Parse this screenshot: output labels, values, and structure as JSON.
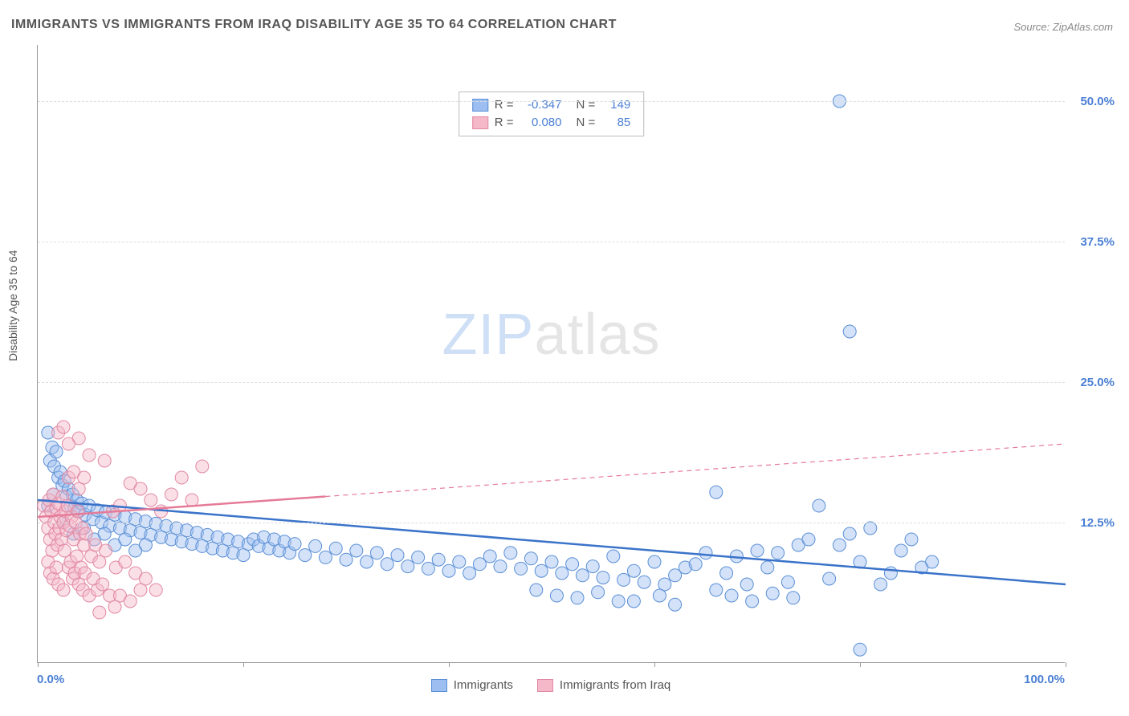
{
  "title": "IMMIGRANTS VS IMMIGRANTS FROM IRAQ DISABILITY AGE 35 TO 64 CORRELATION CHART",
  "source": "Source: ZipAtlas.com",
  "ylabel": "Disability Age 35 to 64",
  "watermark": {
    "part1": "ZIP",
    "part2": "atlas"
  },
  "chart": {
    "type": "scatter",
    "background_color": "#ffffff",
    "grid_color": "#dddddd",
    "axis_color": "#999999",
    "xlim": [
      0,
      100
    ],
    "ylim": [
      0,
      55
    ],
    "xtick_positions": [
      0,
      20,
      40,
      60,
      80,
      100
    ],
    "xtick_labels_shown": {
      "0": "0.0%",
      "100": "100.0%"
    },
    "ytick_positions": [
      12.5,
      25.0,
      37.5,
      50.0
    ],
    "ytick_labels": [
      "12.5%",
      "25.0%",
      "37.5%",
      "50.0%"
    ],
    "ytick_color": "#4a7fd4",
    "xtick_color": "#4a7fd4",
    "marker_radius": 8,
    "marker_opacity": 0.45,
    "trend_line_width": 2.5,
    "trend_dash_width": 1.2
  },
  "series": [
    {
      "name": "Immigrants",
      "fill_color": "#9dbef0",
      "stroke_color": "#5b8fd6",
      "line_color": "#3a73c9",
      "stats": {
        "R": "-0.347",
        "N": "149"
      },
      "trend": {
        "x1": 0,
        "y1": 14.5,
        "x2": 100,
        "y2": 7.0,
        "solid_until_x": 100
      },
      "points": [
        [
          1.0,
          20.5
        ],
        [
          1.2,
          18.0
        ],
        [
          1.4,
          19.2
        ],
        [
          1.6,
          17.5
        ],
        [
          1.8,
          18.8
        ],
        [
          2.0,
          16.5
        ],
        [
          1.0,
          14.0
        ],
        [
          1.5,
          15.0
        ],
        [
          2.2,
          17.0
        ],
        [
          2.4,
          15.8
        ],
        [
          2.6,
          16.2
        ],
        [
          2.8,
          14.8
        ],
        [
          3.0,
          15.5
        ],
        [
          3.2,
          14.0
        ],
        [
          3.4,
          15.0
        ],
        [
          3.6,
          13.8
        ],
        [
          3.8,
          14.5
        ],
        [
          4.0,
          13.5
        ],
        [
          4.3,
          14.2
        ],
        [
          4.6,
          13.2
        ],
        [
          5.0,
          14.0
        ],
        [
          5.4,
          12.8
        ],
        [
          5.8,
          13.6
        ],
        [
          6.2,
          12.5
        ],
        [
          6.6,
          13.4
        ],
        [
          7.0,
          12.2
        ],
        [
          7.5,
          13.2
        ],
        [
          8.0,
          12.0
        ],
        [
          8.5,
          13.0
        ],
        [
          9.0,
          11.8
        ],
        [
          9.5,
          12.8
        ],
        [
          10.0,
          11.6
        ],
        [
          10.5,
          12.6
        ],
        [
          11.0,
          11.4
        ],
        [
          11.5,
          12.4
        ],
        [
          12.0,
          11.2
        ],
        [
          12.5,
          12.2
        ],
        [
          13.0,
          11.0
        ],
        [
          13.5,
          12.0
        ],
        [
          14.0,
          10.8
        ],
        [
          14.5,
          11.8
        ],
        [
          15.0,
          10.6
        ],
        [
          15.5,
          11.6
        ],
        [
          16.0,
          10.4
        ],
        [
          16.5,
          11.4
        ],
        [
          17.0,
          10.2
        ],
        [
          17.5,
          11.2
        ],
        [
          18.0,
          10.0
        ],
        [
          18.5,
          11.0
        ],
        [
          19.0,
          9.8
        ],
        [
          19.5,
          10.8
        ],
        [
          20.0,
          9.6
        ],
        [
          20.5,
          10.6
        ],
        [
          21.0,
          11.0
        ],
        [
          21.5,
          10.4
        ],
        [
          22.0,
          11.2
        ],
        [
          22.5,
          10.2
        ],
        [
          23.0,
          11.0
        ],
        [
          23.5,
          10.0
        ],
        [
          24.0,
          10.8
        ],
        [
          24.5,
          9.8
        ],
        [
          25.0,
          10.6
        ],
        [
          26.0,
          9.6
        ],
        [
          27.0,
          10.4
        ],
        [
          28.0,
          9.4
        ],
        [
          29.0,
          10.2
        ],
        [
          30.0,
          9.2
        ],
        [
          31.0,
          10.0
        ],
        [
          32.0,
          9.0
        ],
        [
          33.0,
          9.8
        ],
        [
          34.0,
          8.8
        ],
        [
          35.0,
          9.6
        ],
        [
          36.0,
          8.6
        ],
        [
          37.0,
          9.4
        ],
        [
          38.0,
          8.4
        ],
        [
          39.0,
          9.2
        ],
        [
          40.0,
          8.2
        ],
        [
          41.0,
          9.0
        ],
        [
          42.0,
          8.0
        ],
        [
          43.0,
          8.8
        ],
        [
          44.0,
          9.5
        ],
        [
          45.0,
          8.6
        ],
        [
          46.0,
          9.8
        ],
        [
          47.0,
          8.4
        ],
        [
          48.0,
          9.3
        ],
        [
          49.0,
          8.2
        ],
        [
          50.0,
          9.0
        ],
        [
          51.0,
          8.0
        ],
        [
          52.0,
          8.8
        ],
        [
          53.0,
          7.8
        ],
        [
          54.0,
          8.6
        ],
        [
          55.0,
          7.6
        ],
        [
          56.0,
          9.5
        ],
        [
          57.0,
          7.4
        ],
        [
          58.0,
          8.2
        ],
        [
          59.0,
          7.2
        ],
        [
          60.0,
          9.0
        ],
        [
          61.0,
          7.0
        ],
        [
          62.0,
          7.8
        ],
        [
          63.0,
          8.5
        ],
        [
          58.0,
          5.5
        ],
        [
          60.5,
          6.0
        ],
        [
          62.0,
          5.2
        ],
        [
          64.0,
          8.8
        ],
        [
          65.0,
          9.8
        ],
        [
          66.0,
          15.2
        ],
        [
          67.0,
          8.0
        ],
        [
          68.0,
          9.5
        ],
        [
          69.0,
          7.0
        ],
        [
          70.0,
          10.0
        ],
        [
          71.0,
          8.5
        ],
        [
          72.0,
          9.8
        ],
        [
          73.0,
          7.2
        ],
        [
          74.0,
          10.5
        ],
        [
          75.0,
          11.0
        ],
        [
          76.0,
          14.0
        ],
        [
          77.0,
          7.5
        ],
        [
          78.0,
          50.0
        ],
        [
          79.0,
          29.5
        ],
        [
          80.0,
          9.0
        ],
        [
          78.0,
          10.5
        ],
        [
          79.0,
          11.5
        ],
        [
          80.0,
          1.2
        ],
        [
          81.0,
          12.0
        ],
        [
          82.0,
          7.0
        ],
        [
          83.0,
          8.0
        ],
        [
          84.0,
          10.0
        ],
        [
          85.0,
          11.0
        ],
        [
          86.0,
          8.5
        ],
        [
          87.0,
          9.0
        ],
        [
          66.0,
          6.5
        ],
        [
          67.5,
          6.0
        ],
        [
          69.5,
          5.5
        ],
        [
          71.5,
          6.2
        ],
        [
          73.5,
          5.8
        ],
        [
          48.5,
          6.5
        ],
        [
          50.5,
          6.0
        ],
        [
          52.5,
          5.8
        ],
        [
          54.5,
          6.3
        ],
        [
          56.5,
          5.5
        ],
        [
          2.5,
          12.5
        ],
        [
          3.5,
          11.5
        ],
        [
          4.5,
          12.0
        ],
        [
          5.5,
          11.0
        ],
        [
          6.5,
          11.5
        ],
        [
          7.5,
          10.5
        ],
        [
          8.5,
          11.0
        ],
        [
          9.5,
          10.0
        ],
        [
          10.5,
          10.5
        ]
      ]
    },
    {
      "name": "Immigrants from Iraq",
      "fill_color": "#f5b8c9",
      "stroke_color": "#e188a2",
      "line_color": "#e57b98",
      "stats": {
        "R": "0.080",
        "N": "85"
      },
      "trend": {
        "x1": 0,
        "y1": 13.0,
        "x2": 100,
        "y2": 19.5,
        "solid_until_x": 28
      },
      "points": [
        [
          0.6,
          14.0
        ],
        [
          0.8,
          13.0
        ],
        [
          1.0,
          12.0
        ],
        [
          1.1,
          14.5
        ],
        [
          1.2,
          11.0
        ],
        [
          1.3,
          13.5
        ],
        [
          1.4,
          10.0
        ],
        [
          1.5,
          15.0
        ],
        [
          1.6,
          12.5
        ],
        [
          1.7,
          11.5
        ],
        [
          1.8,
          13.8
        ],
        [
          1.9,
          10.5
        ],
        [
          2.0,
          14.2
        ],
        [
          2.1,
          12.0
        ],
        [
          2.2,
          13.0
        ],
        [
          2.3,
          11.0
        ],
        [
          2.4,
          14.8
        ],
        [
          2.5,
          12.5
        ],
        [
          2.6,
          10.0
        ],
        [
          2.7,
          13.5
        ],
        [
          2.8,
          11.8
        ],
        [
          2.9,
          14.0
        ],
        [
          3.0,
          8.5
        ],
        [
          3.1,
          12.2
        ],
        [
          3.2,
          9.0
        ],
        [
          3.3,
          13.0
        ],
        [
          3.4,
          7.5
        ],
        [
          3.5,
          11.0
        ],
        [
          3.6,
          8.0
        ],
        [
          3.7,
          12.5
        ],
        [
          3.8,
          9.5
        ],
        [
          3.9,
          13.5
        ],
        [
          4.0,
          7.0
        ],
        [
          4.1,
          11.5
        ],
        [
          4.2,
          8.5
        ],
        [
          4.3,
          12.0
        ],
        [
          4.4,
          6.5
        ],
        [
          4.5,
          10.5
        ],
        [
          4.6,
          8.0
        ],
        [
          4.7,
          11.5
        ],
        [
          5.0,
          6.0
        ],
        [
          5.2,
          9.5
        ],
        [
          5.4,
          7.5
        ],
        [
          5.6,
          10.5
        ],
        [
          5.8,
          6.5
        ],
        [
          6.0,
          9.0
        ],
        [
          6.3,
          7.0
        ],
        [
          6.6,
          10.0
        ],
        [
          7.0,
          6.0
        ],
        [
          7.3,
          13.5
        ],
        [
          7.6,
          8.5
        ],
        [
          8.0,
          14.0
        ],
        [
          8.5,
          9.0
        ],
        [
          9.0,
          16.0
        ],
        [
          9.5,
          8.0
        ],
        [
          10.0,
          15.5
        ],
        [
          10.5,
          7.5
        ],
        [
          11.0,
          14.5
        ],
        [
          11.5,
          6.5
        ],
        [
          12.0,
          13.5
        ],
        [
          4.0,
          20.0
        ],
        [
          2.0,
          20.5
        ],
        [
          3.0,
          19.5
        ],
        [
          2.5,
          21.0
        ],
        [
          5.0,
          18.5
        ],
        [
          13.0,
          15.0
        ],
        [
          14.0,
          16.5
        ],
        [
          15.0,
          14.5
        ],
        [
          16.0,
          17.5
        ],
        [
          6.5,
          18.0
        ],
        [
          8.0,
          6.0
        ],
        [
          9.0,
          5.5
        ],
        [
          10.0,
          6.5
        ],
        [
          7.5,
          5.0
        ],
        [
          6.0,
          4.5
        ],
        [
          1.0,
          9.0
        ],
        [
          1.2,
          8.0
        ],
        [
          1.5,
          7.5
        ],
        [
          1.8,
          8.5
        ],
        [
          2.0,
          7.0
        ],
        [
          2.5,
          6.5
        ],
        [
          3.0,
          16.5
        ],
        [
          3.5,
          17.0
        ],
        [
          4.0,
          15.5
        ],
        [
          4.5,
          16.5
        ]
      ]
    }
  ],
  "legend": {
    "series1": "Immigrants",
    "series2": "Immigrants from Iraq"
  }
}
